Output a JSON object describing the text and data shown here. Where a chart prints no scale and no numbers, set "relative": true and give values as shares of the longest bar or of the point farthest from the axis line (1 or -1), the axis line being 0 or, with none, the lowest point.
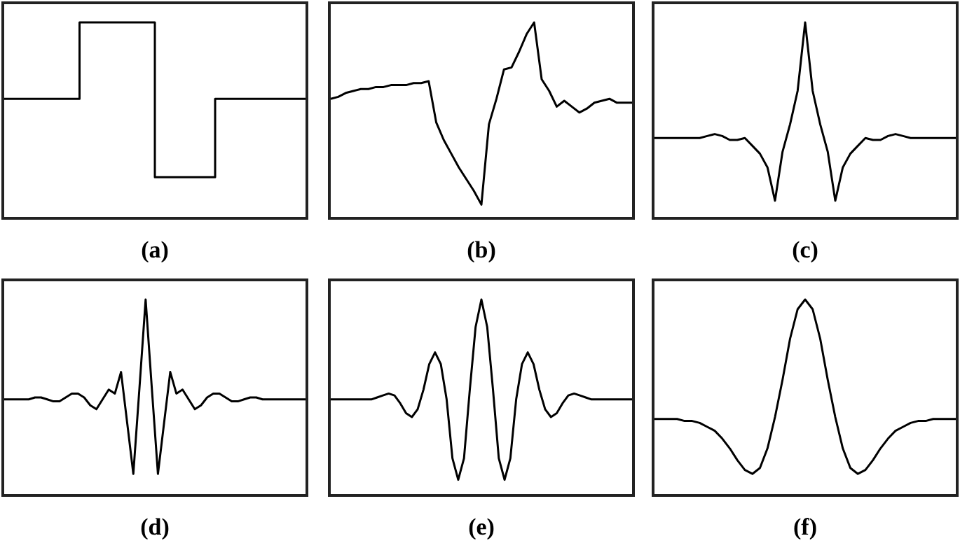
{
  "chart_data": [
    {
      "type": "step",
      "xlabel": "(a)",
      "relative": true,
      "categories": [
        null,
        null,
        null,
        null,
        null,
        null,
        null,
        null,
        null,
        null,
        null,
        null,
        null,
        null,
        null,
        null,
        null,
        null,
        null,
        null,
        null
      ],
      "series": [
        {
          "color": "#000000",
          "values": [
            0.61,
            0.61,
            0.61,
            0.61,
            0.61,
            1,
            1,
            1,
            1,
            1,
            0.21,
            0.21,
            0.21,
            0.21,
            0.61,
            0.61,
            0.61,
            0.61,
            0.61,
            0.61,
            0.61
          ]
        }
      ]
    },
    {
      "type": "line",
      "xlabel": "(b)",
      "relative": true,
      "categories": [
        null,
        null,
        null,
        null,
        null,
        null,
        null,
        null,
        null,
        null,
        null,
        null,
        null,
        null,
        null,
        null,
        null,
        null,
        null,
        null,
        null,
        null,
        null,
        null,
        null,
        null,
        null,
        null,
        null,
        null,
        null,
        null,
        null,
        null,
        null,
        null,
        null,
        null,
        null,
        null,
        null
      ],
      "series": [
        {
          "color": "#000000",
          "values": [
            0.61,
            0.62,
            0.64,
            0.65,
            0.66,
            0.66,
            0.67,
            0.67,
            0.68,
            0.68,
            0.68,
            0.69,
            0.69,
            0.7,
            0.49,
            0.4,
            0.33,
            0.26,
            0.2,
            0.14,
            0.07,
            0.48,
            0.61,
            0.76,
            0.77,
            0.85,
            0.94,
            1,
            0.71,
            0.65,
            0.57,
            0.6,
            0.57,
            0.54,
            0.56,
            0.59,
            0.6,
            0.61,
            0.59,
            0.59,
            0.59
          ]
        }
      ]
    },
    {
      "type": "line",
      "xlabel": "(c)",
      "relative": true,
      "categories": [
        null,
        null,
        null,
        null,
        null,
        null,
        null,
        null,
        null,
        null,
        null,
        null,
        null,
        null,
        null,
        null,
        null,
        null,
        null,
        null,
        null,
        null,
        null,
        null,
        null,
        null,
        null,
        null,
        null,
        null,
        null,
        null,
        null,
        null,
        null,
        null,
        null,
        null,
        null,
        null,
        null
      ],
      "series": [
        {
          "color": "#000000",
          "values": [
            0.41,
            0.41,
            0.41,
            0.41,
            0.41,
            0.41,
            0.41,
            0.42,
            0.43,
            0.42,
            0.4,
            0.4,
            0.41,
            0.37,
            0.33,
            0.26,
            0.09,
            0.34,
            0.48,
            0.65,
            1,
            0.65,
            0.48,
            0.34,
            0.09,
            0.26,
            0.33,
            0.37,
            0.41,
            0.4,
            0.4,
            0.42,
            0.43,
            0.42,
            0.41,
            0.41,
            0.41,
            0.41,
            0.41,
            0.41,
            0.41
          ]
        }
      ]
    },
    {
      "type": "line",
      "xlabel": "(d)",
      "relative": true,
      "categories": [
        null,
        null,
        null,
        null,
        null,
        null,
        null,
        null,
        null,
        null,
        null,
        null,
        null,
        null,
        null,
        null,
        null,
        null,
        null,
        null,
        null,
        null,
        null,
        null,
        null,
        null,
        null,
        null,
        null,
        null,
        null,
        null,
        null,
        null,
        null,
        null,
        null,
        null,
        null,
        null,
        null,
        null,
        null,
        null,
        null,
        null,
        null,
        null,
        null,
        null
      ],
      "series": [
        {
          "color": "#000000",
          "values": [
            0.49,
            0.49,
            0.49,
            0.49,
            0.49,
            0.5,
            0.5,
            0.49,
            0.48,
            0.48,
            0.5,
            0.52,
            0.52,
            0.5,
            0.46,
            0.44,
            0.49,
            0.54,
            0.52,
            0.63,
            0.37,
            0.11,
            0.55,
            1,
            0.55,
            0.11,
            0.37,
            0.63,
            0.52,
            0.54,
            0.49,
            0.44,
            0.46,
            0.5,
            0.52,
            0.52,
            0.5,
            0.48,
            0.48,
            0.49,
            0.5,
            0.5,
            0.49,
            0.49,
            0.49,
            0.49,
            0.49,
            0.49,
            0.49,
            0.49
          ]
        }
      ]
    },
    {
      "type": "line",
      "xlabel": "(e)",
      "relative": true,
      "categories": [
        null,
        null,
        null,
        null,
        null,
        null,
        null,
        null,
        null,
        null,
        null,
        null,
        null,
        null,
        null,
        null,
        null,
        null,
        null,
        null,
        null,
        null,
        null,
        null,
        null,
        null,
        null,
        null,
        null,
        null,
        null,
        null,
        null,
        null,
        null,
        null,
        null,
        null,
        null,
        null,
        null,
        null,
        null,
        null,
        null,
        null,
        null,
        null,
        null,
        null,
        null,
        null,
        null
      ],
      "series": [
        {
          "color": "#000000",
          "values": [
            0.49,
            0.49,
            0.49,
            0.49,
            0.49,
            0.49,
            0.49,
            0.49,
            0.5,
            0.51,
            0.52,
            0.51,
            0.47,
            0.42,
            0.4,
            0.44,
            0.54,
            0.67,
            0.73,
            0.67,
            0.49,
            0.19,
            0.08,
            0.19,
            0.54,
            0.86,
            1,
            0.86,
            0.54,
            0.19,
            0.08,
            0.19,
            0.49,
            0.67,
            0.73,
            0.67,
            0.54,
            0.44,
            0.4,
            0.42,
            0.47,
            0.51,
            0.52,
            0.51,
            0.5,
            0.49,
            0.49,
            0.49,
            0.49,
            0.49,
            0.49,
            0.49,
            0.49
          ]
        }
      ]
    },
    {
      "type": "line",
      "xlabel": "(f)",
      "relative": true,
      "categories": [
        null,
        null,
        null,
        null,
        null,
        null,
        null,
        null,
        null,
        null,
        null,
        null,
        null,
        null,
        null,
        null,
        null,
        null,
        null,
        null,
        null,
        null,
        null,
        null,
        null,
        null,
        null,
        null,
        null,
        null,
        null,
        null,
        null,
        null,
        null,
        null,
        null,
        null,
        null,
        null,
        null
      ],
      "series": [
        {
          "color": "#000000",
          "values": [
            0.39,
            0.39,
            0.39,
            0.39,
            0.38,
            0.38,
            0.37,
            0.35,
            0.33,
            0.29,
            0.24,
            0.18,
            0.13,
            0.11,
            0.14,
            0.24,
            0.4,
            0.59,
            0.8,
            0.95,
            1,
            0.95,
            0.8,
            0.59,
            0.4,
            0.24,
            0.14,
            0.11,
            0.13,
            0.18,
            0.24,
            0.29,
            0.33,
            0.35,
            0.37,
            0.38,
            0.38,
            0.39,
            0.39,
            0.39,
            0.39
          ]
        }
      ]
    }
  ]
}
